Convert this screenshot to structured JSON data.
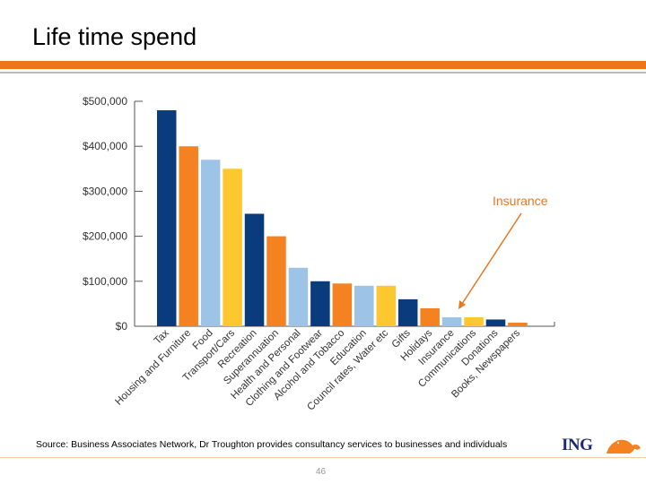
{
  "slide": {
    "title": "Life time spend",
    "source": "Source: Business Associates Network, Dr Troughton provides consultancy services to businesses and individuals",
    "page_number": "46",
    "logo_text": "ING",
    "annotation": "Insurance"
  },
  "colors": {
    "accent": "#ef7318",
    "dark_blue": "#0a3b7c",
    "orange": "#f58220",
    "light_blue": "#9dc3e6",
    "yellow": "#fdc82f",
    "logo_blue": "#1c2a6e"
  },
  "chart_data": {
    "type": "bar",
    "title": "",
    "xlabel": "",
    "ylabel": "",
    "ylim": [
      0,
      500000
    ],
    "yticks": [
      0,
      100000,
      200000,
      300000,
      400000,
      500000
    ],
    "ytick_labels": [
      "$0",
      "$100,000",
      "$200,000",
      "$300,000",
      "$400,000",
      "$500,000"
    ],
    "categories": [
      "Tax",
      "Housing and Furniture",
      "Food",
      "Transport/Cars",
      "Recreation",
      "Superannuation",
      "Health and Personal",
      "Clothing and Footwear",
      "Alcohol and Tobacco",
      "Education",
      "Council rates, Water etc",
      "Gifts",
      "Holidays",
      "Insurance",
      "Communications",
      "Donations",
      "Books, Newspapers"
    ],
    "values": [
      480000,
      400000,
      370000,
      350000,
      250000,
      200000,
      130000,
      100000,
      95000,
      90000,
      90000,
      60000,
      40000,
      20000,
      20000,
      15000,
      8000
    ],
    "bar_colors": [
      "#0a3b7c",
      "#f58220",
      "#9dc3e6",
      "#fdc82f",
      "#0a3b7c",
      "#f58220",
      "#9dc3e6",
      "#0a3b7c",
      "#f58220",
      "#9dc3e6",
      "#fdc82f",
      "#0a3b7c",
      "#f58220",
      "#9dc3e6",
      "#fdc82f",
      "#0a3b7c",
      "#f58220"
    ],
    "grid": false,
    "legend": "none"
  }
}
